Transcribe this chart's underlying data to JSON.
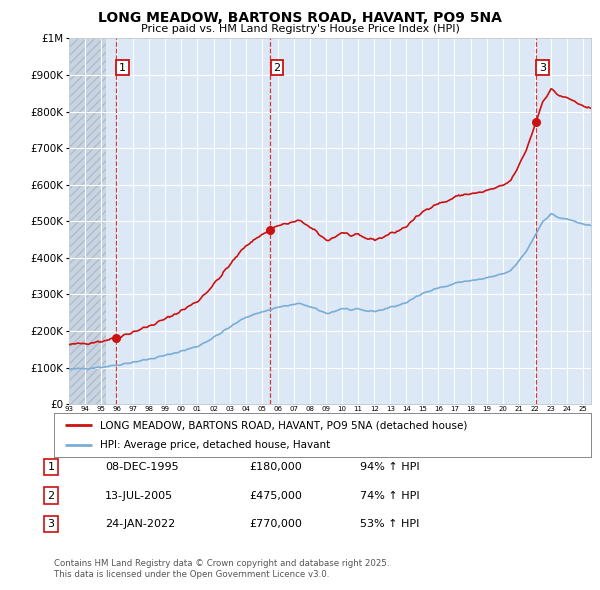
{
  "title": "LONG MEADOW, BARTONS ROAD, HAVANT, PO9 5NA",
  "subtitle": "Price paid vs. HM Land Registry's House Price Index (HPI)",
  "legend_line1": "LONG MEADOW, BARTONS ROAD, HAVANT, PO9 5NA (detached house)",
  "legend_line2": "HPI: Average price, detached house, Havant",
  "transactions": [
    {
      "label": "1",
      "date": "08-DEC-1995",
      "price": 180000,
      "hpi_pct": "94%",
      "year": 1995.92
    },
    {
      "label": "2",
      "date": "13-JUL-2005",
      "price": 475000,
      "hpi_pct": "74%",
      "year": 2005.53
    },
    {
      "label": "3",
      "date": "24-JAN-2022",
      "price": 770000,
      "hpi_pct": "53%",
      "year": 2022.07
    }
  ],
  "footer": "Contains HM Land Registry data © Crown copyright and database right 2025.\nThis data is licensed under the Open Government Licence v3.0.",
  "hpi_color": "#7aaed6",
  "price_color": "#cc1111",
  "ylim": [
    0,
    1000000
  ],
  "xlim_start": 1993.0,
  "xlim_end": 2025.5,
  "bg_color": "#dce8f5",
  "hatch_color": "#c8d4e0"
}
